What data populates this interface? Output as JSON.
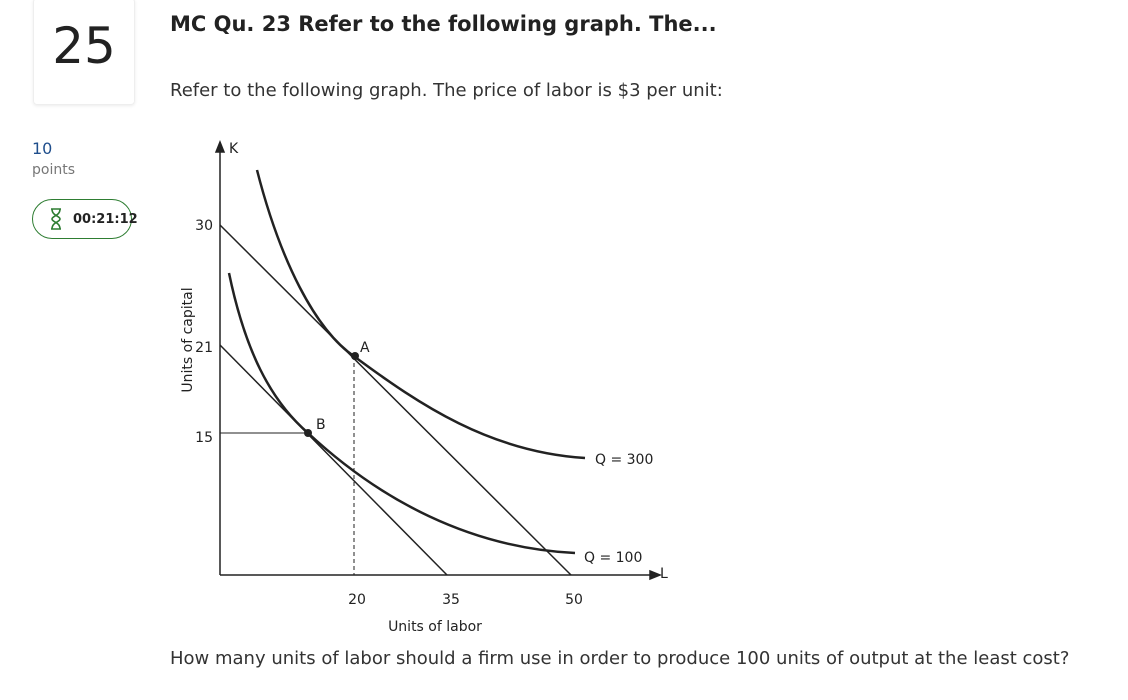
{
  "question_number": "25",
  "title": "MC Qu. 23 Refer to the following graph. The...",
  "prompt": "Refer to the following graph. The price of labor is $3 per unit:",
  "points": {
    "value": "10",
    "label": "points"
  },
  "timer": "00:21:12",
  "graph": {
    "y_axis_letter": "K",
    "x_axis_letter": "L",
    "y_axis_title": "Units of capital",
    "x_axis_title": "Units of labor",
    "y_labels": [
      "30",
      "21",
      "15"
    ],
    "x_labels": [
      "20",
      "35",
      "50"
    ],
    "points": [
      "A",
      "B"
    ],
    "curves": [
      "Q = 300",
      "Q = 100"
    ]
  },
  "question": "How many units of labor should a firm use in order to produce 100 units of output at the least cost?"
}
